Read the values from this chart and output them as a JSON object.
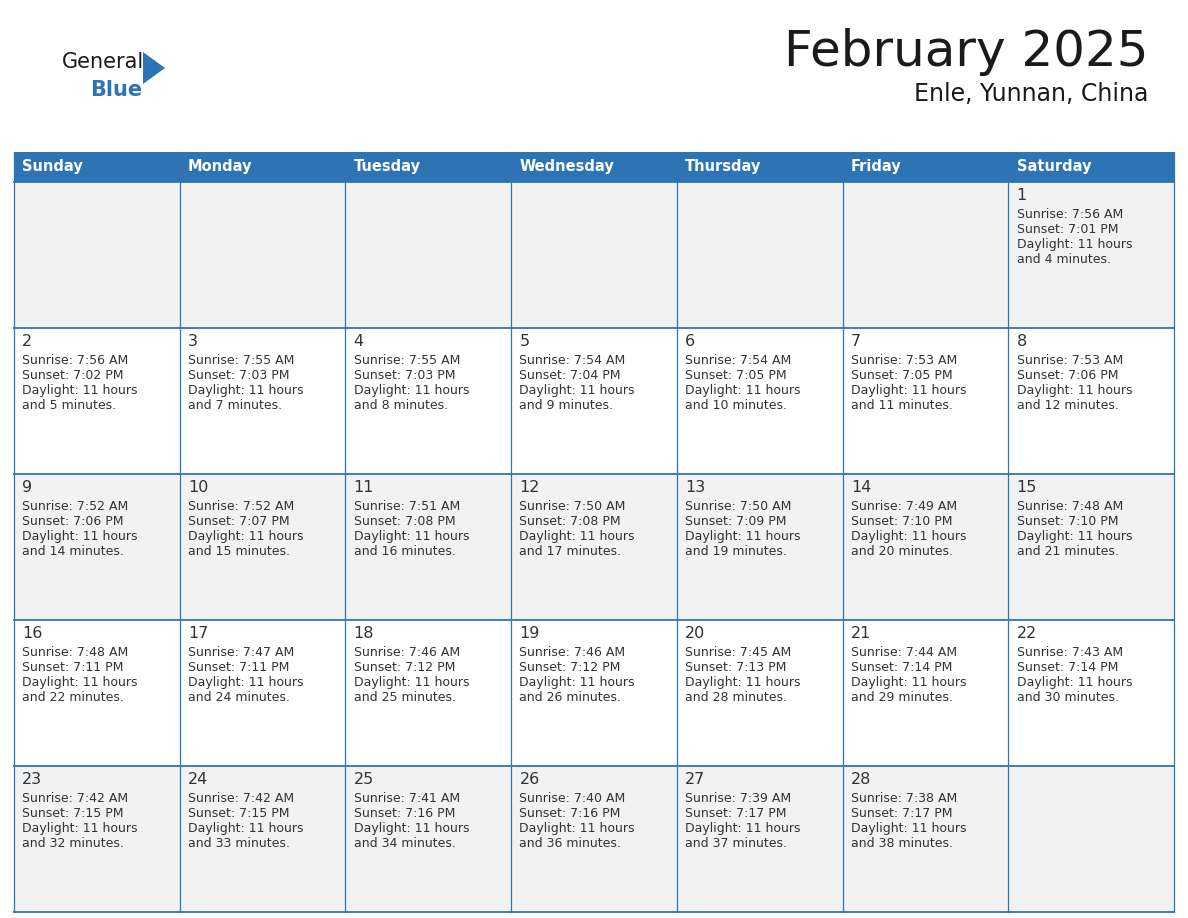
{
  "title": "February 2025",
  "subtitle": "Enle, Yunnan, China",
  "header_bg_color": "#2E74B5",
  "header_text_color": "#FFFFFF",
  "day_headers": [
    "Sunday",
    "Monday",
    "Tuesday",
    "Wednesday",
    "Thursday",
    "Friday",
    "Saturday"
  ],
  "bg_color": "#FFFFFF",
  "cell_bg_color": "#FFFFFF",
  "cell_alt_bg_color": "#F2F2F2",
  "border_color": "#2E74B5",
  "day_number_color": "#333333",
  "cell_text_color": "#333333",
  "logo_general_color": "#1A1A1A",
  "logo_blue_color": "#2E74B5",
  "calendar": [
    [
      null,
      null,
      null,
      null,
      null,
      null,
      1
    ],
    [
      2,
      3,
      4,
      5,
      6,
      7,
      8
    ],
    [
      9,
      10,
      11,
      12,
      13,
      14,
      15
    ],
    [
      16,
      17,
      18,
      19,
      20,
      21,
      22
    ],
    [
      23,
      24,
      25,
      26,
      27,
      28,
      null
    ]
  ],
  "day_data": {
    "1": {
      "sunrise": "7:56 AM",
      "sunset": "7:01 PM",
      "daylight_hours": 11,
      "daylight_minutes": 4
    },
    "2": {
      "sunrise": "7:56 AM",
      "sunset": "7:02 PM",
      "daylight_hours": 11,
      "daylight_minutes": 5
    },
    "3": {
      "sunrise": "7:55 AM",
      "sunset": "7:03 PM",
      "daylight_hours": 11,
      "daylight_minutes": 7
    },
    "4": {
      "sunrise": "7:55 AM",
      "sunset": "7:03 PM",
      "daylight_hours": 11,
      "daylight_minutes": 8
    },
    "5": {
      "sunrise": "7:54 AM",
      "sunset": "7:04 PM",
      "daylight_hours": 11,
      "daylight_minutes": 9
    },
    "6": {
      "sunrise": "7:54 AM",
      "sunset": "7:05 PM",
      "daylight_hours": 11,
      "daylight_minutes": 10
    },
    "7": {
      "sunrise": "7:53 AM",
      "sunset": "7:05 PM",
      "daylight_hours": 11,
      "daylight_minutes": 11
    },
    "8": {
      "sunrise": "7:53 AM",
      "sunset": "7:06 PM",
      "daylight_hours": 11,
      "daylight_minutes": 12
    },
    "9": {
      "sunrise": "7:52 AM",
      "sunset": "7:06 PM",
      "daylight_hours": 11,
      "daylight_minutes": 14
    },
    "10": {
      "sunrise": "7:52 AM",
      "sunset": "7:07 PM",
      "daylight_hours": 11,
      "daylight_minutes": 15
    },
    "11": {
      "sunrise": "7:51 AM",
      "sunset": "7:08 PM",
      "daylight_hours": 11,
      "daylight_minutes": 16
    },
    "12": {
      "sunrise": "7:50 AM",
      "sunset": "7:08 PM",
      "daylight_hours": 11,
      "daylight_minutes": 17
    },
    "13": {
      "sunrise": "7:50 AM",
      "sunset": "7:09 PM",
      "daylight_hours": 11,
      "daylight_minutes": 19
    },
    "14": {
      "sunrise": "7:49 AM",
      "sunset": "7:10 PM",
      "daylight_hours": 11,
      "daylight_minutes": 20
    },
    "15": {
      "sunrise": "7:48 AM",
      "sunset": "7:10 PM",
      "daylight_hours": 11,
      "daylight_minutes": 21
    },
    "16": {
      "sunrise": "7:48 AM",
      "sunset": "7:11 PM",
      "daylight_hours": 11,
      "daylight_minutes": 22
    },
    "17": {
      "sunrise": "7:47 AM",
      "sunset": "7:11 PM",
      "daylight_hours": 11,
      "daylight_minutes": 24
    },
    "18": {
      "sunrise": "7:46 AM",
      "sunset": "7:12 PM",
      "daylight_hours": 11,
      "daylight_minutes": 25
    },
    "19": {
      "sunrise": "7:46 AM",
      "sunset": "7:12 PM",
      "daylight_hours": 11,
      "daylight_minutes": 26
    },
    "20": {
      "sunrise": "7:45 AM",
      "sunset": "7:13 PM",
      "daylight_hours": 11,
      "daylight_minutes": 28
    },
    "21": {
      "sunrise": "7:44 AM",
      "sunset": "7:14 PM",
      "daylight_hours": 11,
      "daylight_minutes": 29
    },
    "22": {
      "sunrise": "7:43 AM",
      "sunset": "7:14 PM",
      "daylight_hours": 11,
      "daylight_minutes": 30
    },
    "23": {
      "sunrise": "7:42 AM",
      "sunset": "7:15 PM",
      "daylight_hours": 11,
      "daylight_minutes": 32
    },
    "24": {
      "sunrise": "7:42 AM",
      "sunset": "7:15 PM",
      "daylight_hours": 11,
      "daylight_minutes": 33
    },
    "25": {
      "sunrise": "7:41 AM",
      "sunset": "7:16 PM",
      "daylight_hours": 11,
      "daylight_minutes": 34
    },
    "26": {
      "sunrise": "7:40 AM",
      "sunset": "7:16 PM",
      "daylight_hours": 11,
      "daylight_minutes": 36
    },
    "27": {
      "sunrise": "7:39 AM",
      "sunset": "7:17 PM",
      "daylight_hours": 11,
      "daylight_minutes": 37
    },
    "28": {
      "sunrise": "7:38 AM",
      "sunset": "7:17 PM",
      "daylight_hours": 11,
      "daylight_minutes": 38
    }
  }
}
